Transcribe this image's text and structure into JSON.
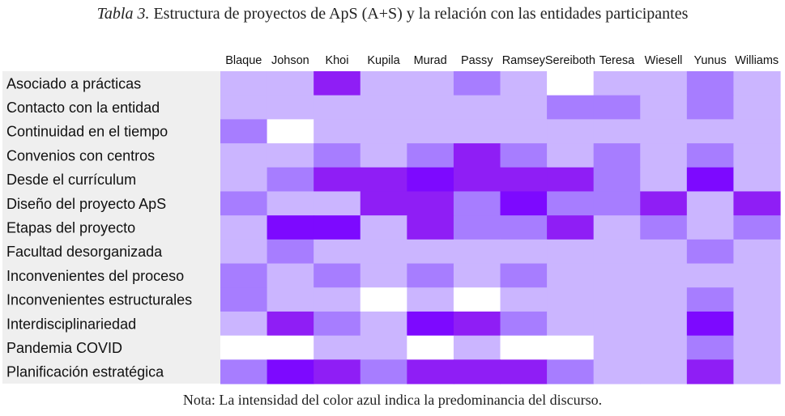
{
  "caption": {
    "label": "Tabla 3.",
    "text": "Estructura de proyectos de ApS (A+S) y la relación con las entidades participantes"
  },
  "note": "Nota: La intensidad del color azul indica la predominancia del discurso.",
  "chart_data": {
    "type": "heatmap",
    "title": "",
    "columns": [
      "Blaque",
      "Johson",
      "Khoi",
      "Kupila",
      "Murad",
      "Passy",
      "Ramsey",
      "Sereiboth",
      "Teresa",
      "Wiesell",
      "Yunus",
      "Williams"
    ],
    "rows": [
      "Asociado a prácticas",
      "Contacto con la entidad",
      "Continuidad en el tiempo",
      "Convenios con centros",
      "Desde el currículum",
      "Diseño del proyecto ApS",
      "Etapas del proyecto",
      "Facultad desorganizada",
      "Inconvenientes del proceso",
      "Inconvenientes estructurales",
      "Interdisciplinariedad",
      "Pandemia COVID",
      "Planificación estratégica"
    ],
    "values": [
      [
        1,
        1,
        4,
        1,
        1,
        2,
        1,
        0,
        1,
        1,
        2,
        1
      ],
      [
        1,
        1,
        1,
        1,
        1,
        1,
        1,
        2,
        2,
        1,
        2,
        1
      ],
      [
        2,
        0,
        1,
        1,
        1,
        1,
        1,
        1,
        1,
        1,
        1,
        1
      ],
      [
        1,
        1,
        2,
        1,
        2,
        4,
        2,
        1,
        2,
        1,
        2,
        1
      ],
      [
        1,
        2,
        4,
        4,
        5,
        4,
        4,
        4,
        2,
        1,
        5,
        1
      ],
      [
        2,
        1,
        1,
        4,
        4,
        2,
        5,
        2,
        2,
        4,
        1,
        4
      ],
      [
        1,
        5,
        5,
        1,
        4,
        2,
        2,
        4,
        1,
        2,
        1,
        2
      ],
      [
        1,
        2,
        1,
        1,
        1,
        1,
        1,
        1,
        1,
        1,
        2,
        1
      ],
      [
        2,
        1,
        2,
        1,
        2,
        1,
        2,
        1,
        1,
        1,
        1,
        1
      ],
      [
        2,
        1,
        1,
        0,
        1,
        0,
        1,
        1,
        1,
        1,
        2,
        1
      ],
      [
        1,
        4,
        2,
        1,
        5,
        4,
        2,
        1,
        1,
        1,
        5,
        1
      ],
      [
        0,
        0,
        1,
        1,
        0,
        1,
        0,
        0,
        1,
        1,
        2,
        1
      ],
      [
        2,
        5,
        4,
        2,
        4,
        4,
        4,
        2,
        1,
        1,
        4,
        1
      ]
    ],
    "scale": [
      0,
      5
    ],
    "palette": [
      "#ffffff",
      "#cbb5ff",
      "#a77dff",
      "#9a55ff",
      "#8f1ef5",
      "#7d09ff"
    ],
    "row_label_background": "#efefef"
  }
}
